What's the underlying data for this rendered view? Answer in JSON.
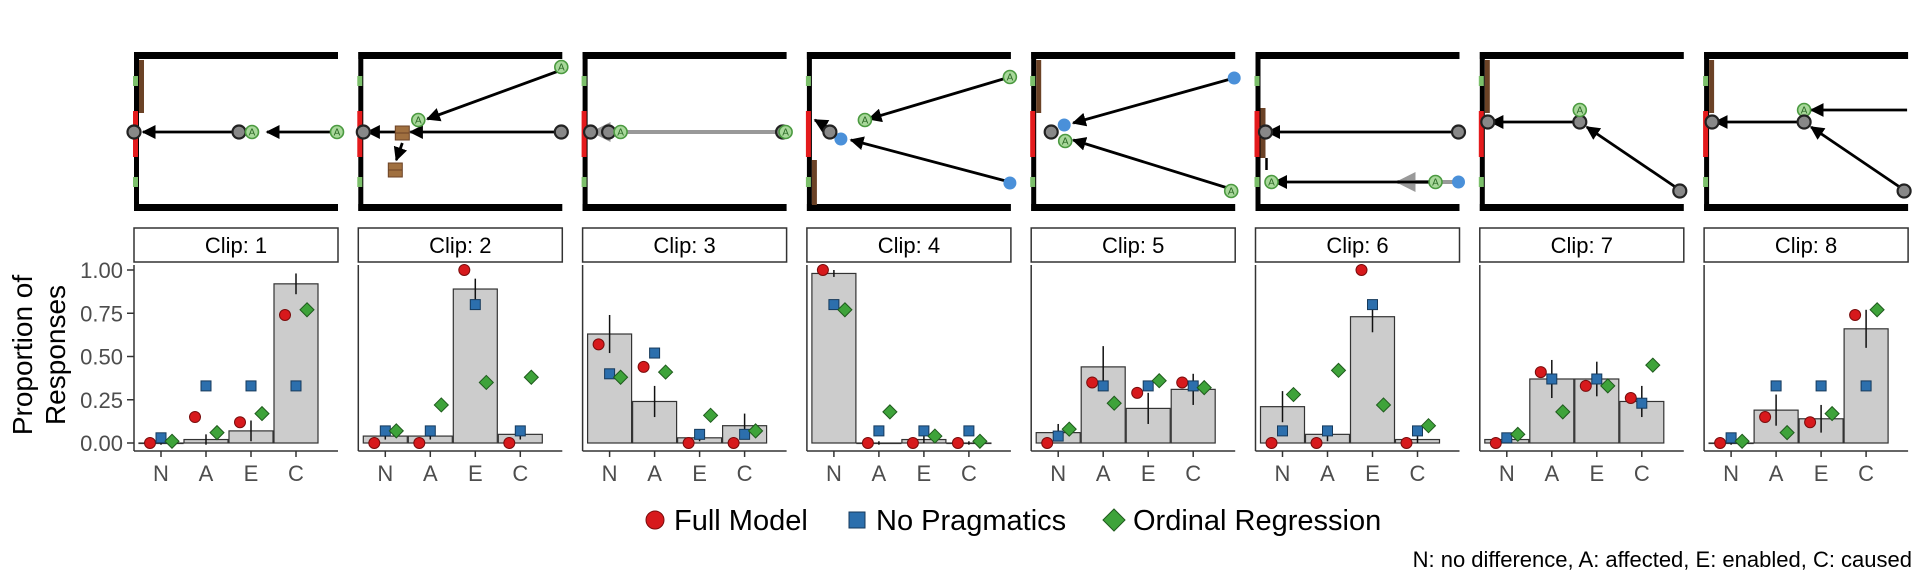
{
  "chart_data": {
    "type": "bar",
    "ylabel": "Proportion of\nResponses",
    "ylim": [
      0,
      1
    ],
    "yticks": [
      "0.00",
      "0.25",
      "0.50",
      "0.75",
      "1.00"
    ],
    "categories": [
      "N",
      "A",
      "E",
      "C"
    ],
    "legend": {
      "placement": "bottom",
      "entries": [
        {
          "label": "Full Model",
          "shape": "circle",
          "color": "#d7191c"
        },
        {
          "label": "No Pragmatics",
          "shape": "square",
          "color": "#2c6fad"
        },
        {
          "label": "Ordinal Regression",
          "shape": "diamond",
          "color": "#3ea33a"
        }
      ]
    },
    "caption": "N: no difference, A: affected, E: enabled, C: caused",
    "colors": {
      "bar": "#cccccc",
      "wall": "#e41a1c",
      "gate": "#6b4226",
      "agent": "#7bbf6a",
      "ball": "#888888",
      "blue_ball": "#4a90d9"
    },
    "panels": [
      {
        "label": "Clip: 1",
        "bar": [
          0.0,
          0.02,
          0.07,
          0.92
        ],
        "err": [
          0.01,
          0.03,
          0.06,
          0.06
        ],
        "full": [
          0.0,
          0.15,
          0.12,
          0.74
        ],
        "noprag": [
          0.03,
          0.33,
          0.33,
          0.33
        ],
        "ordinal": [
          0.01,
          0.06,
          0.17,
          0.77
        ]
      },
      {
        "label": "Clip: 2",
        "bar": [
          0.04,
          0.04,
          0.89,
          0.05
        ],
        "err": [
          0.02,
          0.02,
          0.06,
          0.03
        ],
        "full": [
          0.0,
          0.0,
          1.0,
          0.0
        ],
        "noprag": [
          0.07,
          0.07,
          0.8,
          0.07
        ],
        "ordinal": [
          0.07,
          0.22,
          0.35,
          0.38
        ]
      },
      {
        "label": "Clip: 3",
        "bar": [
          0.63,
          0.24,
          0.03,
          0.1
        ],
        "err": [
          0.11,
          0.09,
          0.02,
          0.07
        ],
        "full": [
          0.57,
          0.44,
          0.0,
          0.0
        ],
        "noprag": [
          0.4,
          0.52,
          0.05,
          0.05
        ],
        "ordinal": [
          0.38,
          0.41,
          0.16,
          0.07
        ]
      },
      {
        "label": "Clip: 4",
        "bar": [
          0.98,
          0.0,
          0.02,
          0.0
        ],
        "err": [
          0.02,
          0.01,
          0.02,
          0.01
        ],
        "full": [
          1.0,
          0.0,
          0.0,
          0.0
        ],
        "noprag": [
          0.8,
          0.07,
          0.07,
          0.07
        ],
        "ordinal": [
          0.77,
          0.18,
          0.04,
          0.01
        ]
      },
      {
        "label": "Clip: 5",
        "bar": [
          0.06,
          0.44,
          0.2,
          0.31
        ],
        "err": [
          0.05,
          0.12,
          0.09,
          0.09
        ],
        "full": [
          0.0,
          0.35,
          0.29,
          0.35
        ],
        "noprag": [
          0.04,
          0.33,
          0.33,
          0.33
        ],
        "ordinal": [
          0.08,
          0.23,
          0.36,
          0.32
        ]
      },
      {
        "label": "Clip: 6",
        "bar": [
          0.21,
          0.05,
          0.73,
          0.02
        ],
        "err": [
          0.09,
          0.04,
          0.09,
          0.02
        ],
        "full": [
          0.0,
          0.0,
          1.0,
          0.0
        ],
        "noprag": [
          0.07,
          0.07,
          0.8,
          0.07
        ],
        "ordinal": [
          0.28,
          0.42,
          0.22,
          0.1
        ]
      },
      {
        "label": "Clip: 7",
        "bar": [
          0.02,
          0.37,
          0.37,
          0.24
        ],
        "err": [
          0.01,
          0.11,
          0.1,
          0.09
        ],
        "full": [
          0.0,
          0.41,
          0.33,
          0.26
        ],
        "noprag": [
          0.03,
          0.37,
          0.37,
          0.23
        ],
        "ordinal": [
          0.05,
          0.18,
          0.33,
          0.45
        ]
      },
      {
        "label": "Clip: 8",
        "bar": [
          0.0,
          0.19,
          0.14,
          0.66
        ],
        "err": [
          0.01,
          0.09,
          0.08,
          0.11
        ],
        "full": [
          0.0,
          0.15,
          0.12,
          0.74
        ],
        "noprag": [
          0.03,
          0.33,
          0.33,
          0.33
        ],
        "ordinal": [
          0.01,
          0.06,
          0.17,
          0.77
        ]
      }
    ]
  }
}
